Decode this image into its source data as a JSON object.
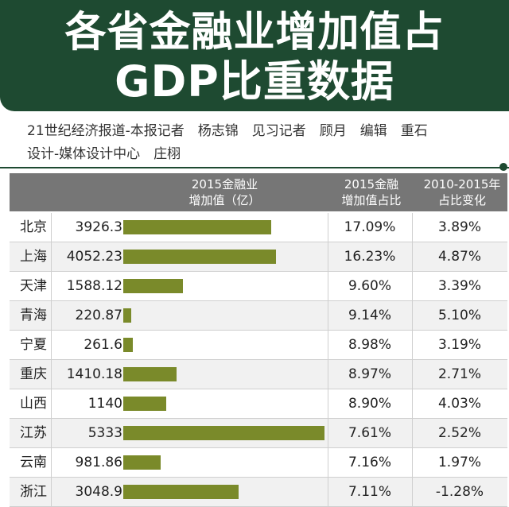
{
  "title_line1": "各省金融业增加值占",
  "title_line2": "GDP比重数据",
  "credit_line1": "21世纪经济报道-本报记者　杨志锦　见习记者　顾月　编辑　重石",
  "credit_line2": "设计-媒体设计中心　庄栩",
  "colors": {
    "banner": "#1e4a31",
    "bar": "#7a8a2a",
    "header": "#767676"
  },
  "chart_data": {
    "type": "table",
    "title": "各省金融业增加值占GDP比重数据",
    "columns": [
      "2015金融业\n增加值（亿）",
      "2015金融\n增加值占比",
      "2010-2015年\n占比变化"
    ],
    "rows": [
      {
        "province": "北京",
        "value": "3926.3",
        "amount": 3926.3,
        "share": "17.09%",
        "change": "3.89%"
      },
      {
        "province": "上海",
        "value": "4052.23",
        "amount": 4052.23,
        "share": "16.23%",
        "change": "4.87%"
      },
      {
        "province": "天津",
        "value": "1588.12",
        "amount": 1588.12,
        "share": "9.60%",
        "change": "3.39%"
      },
      {
        "province": "青海",
        "value": "220.87",
        "amount": 220.87,
        "share": "9.14%",
        "change": "5.10%"
      },
      {
        "province": "宁夏",
        "value": "261.6",
        "amount": 261.6,
        "share": "8.98%",
        "change": "3.19%"
      },
      {
        "province": "重庆",
        "value": "1410.18",
        "amount": 1410.18,
        "share": "8.97%",
        "change": "2.71%"
      },
      {
        "province": "山西",
        "value": "1140",
        "amount": 1140,
        "share": "8.90%",
        "change": "4.03%"
      },
      {
        "province": "江苏",
        "value": "5333",
        "amount": 5333,
        "share": "7.61%",
        "change": "2.52%"
      },
      {
        "province": "云南",
        "value": "981.86",
        "amount": 981.86,
        "share": "7.16%",
        "change": "1.97%"
      },
      {
        "province": "浙江",
        "value": "3048.9",
        "amount": 3048.9,
        "share": "7.11%",
        "change": "-1.28%"
      }
    ],
    "bar_max": 5333
  }
}
